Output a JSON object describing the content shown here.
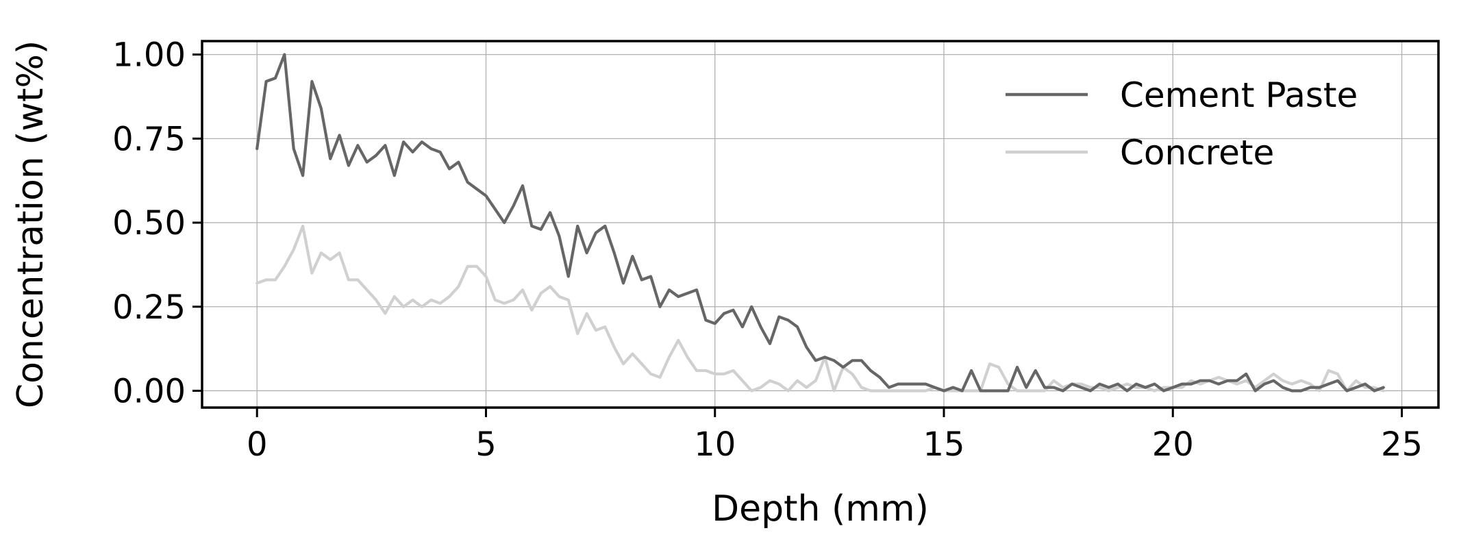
{
  "chart_data": {
    "type": "line",
    "title": "",
    "xlabel": "Depth (mm)",
    "ylabel": "Concentration (wt%)",
    "xlim": [
      -1.2,
      25.8
    ],
    "ylim": [
      -0.05,
      1.04
    ],
    "xticks": [
      0,
      5,
      10,
      15,
      20,
      25
    ],
    "xtick_labels": [
      "0",
      "5",
      "10",
      "15",
      "20",
      "25"
    ],
    "yticks": [
      0.0,
      0.25,
      0.5,
      0.75,
      1.0
    ],
    "ytick_labels": [
      "0.00",
      "0.25",
      "0.50",
      "0.75",
      "1.00"
    ],
    "grid": true,
    "legend_position": "top-right",
    "series": [
      {
        "name": "Cement Paste",
        "color": "#666666",
        "x": [
          0.0,
          0.2,
          0.4,
          0.6,
          0.8,
          1.0,
          1.2,
          1.4,
          1.6,
          1.8,
          2.0,
          2.2,
          2.4,
          2.6,
          2.8,
          3.0,
          3.2,
          3.4,
          3.6,
          3.8,
          4.0,
          4.2,
          4.4,
          4.6,
          4.8,
          5.0,
          5.2,
          5.4,
          5.6,
          5.8,
          6.0,
          6.2,
          6.4,
          6.6,
          6.8,
          7.0,
          7.2,
          7.4,
          7.6,
          7.8,
          8.0,
          8.2,
          8.4,
          8.6,
          8.8,
          9.0,
          9.2,
          9.4,
          9.6,
          9.8,
          10.0,
          10.2,
          10.4,
          10.6,
          10.8,
          11.0,
          11.2,
          11.4,
          11.6,
          11.8,
          12.0,
          12.2,
          12.4,
          12.6,
          12.8,
          13.0,
          13.2,
          13.4,
          13.6,
          13.8,
          14.0,
          14.2,
          14.4,
          14.6,
          14.8,
          15.0,
          15.2,
          15.4,
          15.6,
          15.8,
          16.0,
          16.2,
          16.4,
          16.6,
          16.8,
          17.0,
          17.2,
          17.4,
          17.6,
          17.8,
          18.0,
          18.2,
          18.4,
          18.6,
          18.8,
          19.0,
          19.2,
          19.4,
          19.6,
          19.8,
          20.0,
          20.2,
          20.4,
          20.6,
          20.8,
          21.0,
          21.2,
          21.4,
          21.6,
          21.8,
          22.0,
          22.2,
          22.4,
          22.6,
          22.8,
          23.0,
          23.2,
          23.4,
          23.6,
          23.8,
          24.0,
          24.2,
          24.4,
          24.6
        ],
        "values": [
          0.72,
          0.92,
          0.93,
          1.0,
          0.72,
          0.64,
          0.92,
          0.84,
          0.69,
          0.76,
          0.67,
          0.73,
          0.68,
          0.7,
          0.73,
          0.64,
          0.74,
          0.71,
          0.74,
          0.72,
          0.71,
          0.66,
          0.68,
          0.62,
          0.6,
          0.58,
          0.54,
          0.5,
          0.55,
          0.61,
          0.49,
          0.48,
          0.53,
          0.46,
          0.34,
          0.49,
          0.41,
          0.47,
          0.49,
          0.41,
          0.32,
          0.4,
          0.33,
          0.34,
          0.25,
          0.3,
          0.28,
          0.29,
          0.3,
          0.21,
          0.2,
          0.23,
          0.24,
          0.19,
          0.25,
          0.19,
          0.14,
          0.22,
          0.21,
          0.19,
          0.13,
          0.09,
          0.1,
          0.09,
          0.07,
          0.09,
          0.09,
          0.06,
          0.04,
          0.01,
          0.02,
          0.02,
          0.02,
          0.02,
          0.01,
          0.0,
          0.01,
          0.0,
          0.06,
          0.0,
          0.0,
          0.0,
          0.0,
          0.07,
          0.01,
          0.06,
          0.01,
          0.01,
          0.0,
          0.02,
          0.01,
          0.0,
          0.02,
          0.01,
          0.02,
          0.0,
          0.02,
          0.01,
          0.02,
          0.0,
          0.01,
          0.02,
          0.02,
          0.03,
          0.03,
          0.02,
          0.03,
          0.03,
          0.05,
          0.0,
          0.02,
          0.03,
          0.01,
          0.0,
          0.0,
          0.01,
          0.01,
          0.02,
          0.03,
          0.0,
          0.01,
          0.02,
          0.0,
          0.01
        ]
      },
      {
        "name": "Concrete",
        "color": "#d0d0d0",
        "x": [
          0.0,
          0.2,
          0.4,
          0.6,
          0.8,
          1.0,
          1.2,
          1.4,
          1.6,
          1.8,
          2.0,
          2.2,
          2.4,
          2.6,
          2.8,
          3.0,
          3.2,
          3.4,
          3.6,
          3.8,
          4.0,
          4.2,
          4.4,
          4.6,
          4.8,
          5.0,
          5.2,
          5.4,
          5.6,
          5.8,
          6.0,
          6.2,
          6.4,
          6.6,
          6.8,
          7.0,
          7.2,
          7.4,
          7.6,
          7.8,
          8.0,
          8.2,
          8.4,
          8.6,
          8.8,
          9.0,
          9.2,
          9.4,
          9.6,
          9.8,
          10.0,
          10.2,
          10.4,
          10.6,
          10.8,
          11.0,
          11.2,
          11.4,
          11.6,
          11.8,
          12.0,
          12.2,
          12.4,
          12.6,
          12.8,
          13.0,
          13.2,
          13.4,
          13.6,
          13.8,
          14.0,
          14.2,
          14.4,
          14.6,
          14.8,
          15.0,
          15.2,
          15.4,
          15.6,
          15.8,
          16.0,
          16.2,
          16.4,
          16.6,
          16.8,
          17.0,
          17.2,
          17.4,
          17.6,
          17.8,
          18.0,
          18.2,
          18.4,
          18.6,
          18.8,
          19.0,
          19.2,
          19.4,
          19.6,
          19.8,
          20.0,
          20.2,
          20.4,
          20.6,
          20.8,
          21.0,
          21.2,
          21.4,
          21.6,
          21.8,
          22.0,
          22.2,
          22.4,
          22.6,
          22.8,
          23.0,
          23.2,
          23.4,
          23.6,
          23.8,
          24.0,
          24.2,
          24.4,
          24.6
        ],
        "values": [
          0.32,
          0.33,
          0.33,
          0.37,
          0.42,
          0.49,
          0.35,
          0.41,
          0.39,
          0.41,
          0.33,
          0.33,
          0.3,
          0.27,
          0.23,
          0.28,
          0.25,
          0.27,
          0.25,
          0.27,
          0.26,
          0.28,
          0.31,
          0.37,
          0.37,
          0.34,
          0.27,
          0.26,
          0.27,
          0.3,
          0.24,
          0.29,
          0.31,
          0.28,
          0.27,
          0.17,
          0.23,
          0.18,
          0.19,
          0.13,
          0.08,
          0.11,
          0.08,
          0.05,
          0.04,
          0.1,
          0.15,
          0.1,
          0.06,
          0.06,
          0.05,
          0.05,
          0.06,
          0.03,
          0.0,
          0.01,
          0.03,
          0.02,
          0.0,
          0.03,
          0.01,
          0.03,
          0.1,
          0.0,
          0.07,
          0.05,
          0.01,
          0.0,
          0.0,
          0.0,
          0.0,
          0.0,
          0.0,
          0.0,
          0.01,
          0.0,
          0.0,
          0.0,
          0.0,
          0.0,
          0.08,
          0.07,
          0.02,
          0.0,
          0.0,
          0.0,
          0.0,
          0.03,
          0.01,
          0.02,
          0.02,
          0.01,
          0.01,
          0.0,
          0.01,
          0.02,
          0.01,
          0.01,
          0.0,
          0.01,
          0.01,
          0.01,
          0.03,
          0.02,
          0.03,
          0.04,
          0.03,
          0.02,
          0.03,
          0.01,
          0.03,
          0.05,
          0.03,
          0.02,
          0.03,
          0.02,
          0.0,
          0.06,
          0.05,
          0.0,
          0.03,
          0.01,
          0.01,
          0.0
        ]
      }
    ]
  }
}
